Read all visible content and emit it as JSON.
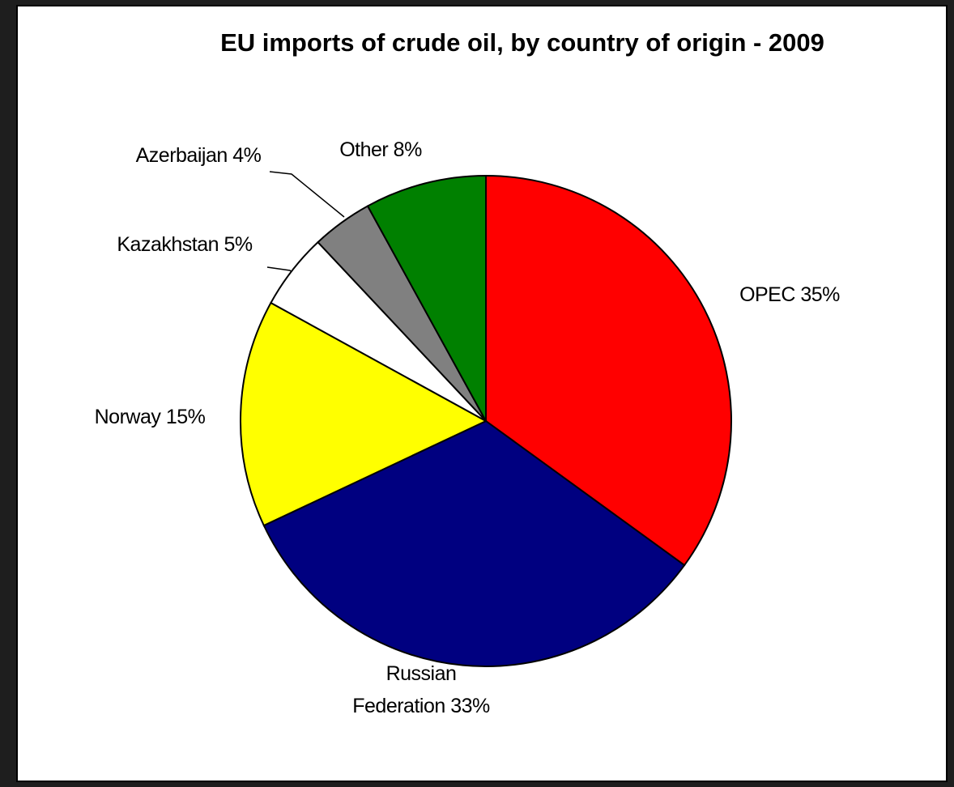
{
  "chart_data": {
    "type": "pie",
    "title": "EU imports of crude oil, by country of origin - 2009",
    "categories": [
      "OPEC",
      "Russian Federation",
      "Norway",
      "Kazakhstan",
      "Azerbaijan",
      "Other"
    ],
    "values": [
      35,
      33,
      15,
      5,
      4,
      8
    ],
    "value_labels": [
      "35%",
      "33%",
      "15%",
      "5%",
      "4%",
      "8%"
    ],
    "colors": [
      "#ff0000",
      "#000080",
      "#ffff00",
      "#ffffff",
      "#808080",
      "#008000"
    ]
  }
}
